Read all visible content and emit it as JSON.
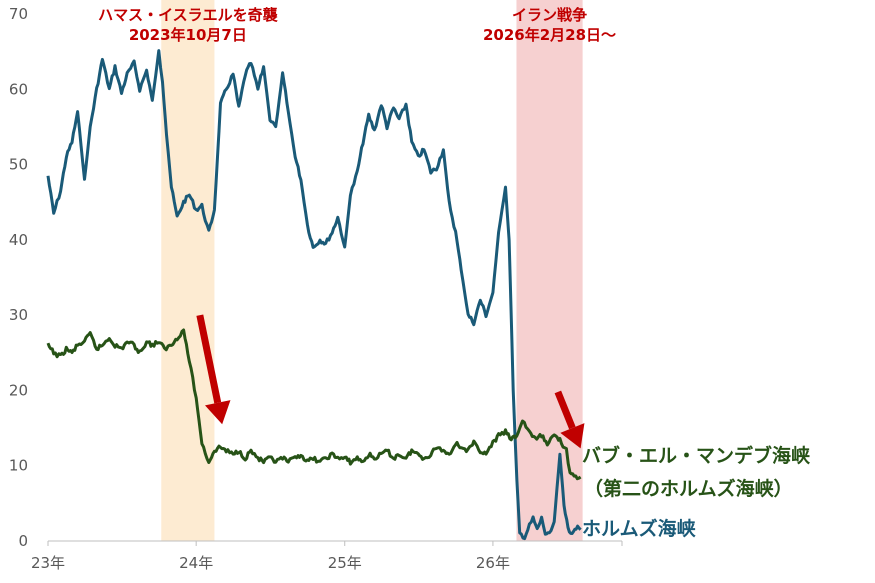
{
  "chart_data": {
    "type": "line",
    "title": "",
    "xlabel": "",
    "ylabel": "",
    "ylim": [
      0,
      70
    ],
    "xlim": [
      "2023-01-01",
      "2026-11-15"
    ],
    "y_ticks": [
      0,
      10,
      20,
      30,
      40,
      50,
      60,
      70
    ],
    "x_ticks": [
      {
        "date": "2023-01-01",
        "label": "23年"
      },
      {
        "date": "2024-01-01",
        "label": "24年"
      },
      {
        "date": "2025-01-01",
        "label": "25年"
      },
      {
        "date": "2026-01-01",
        "label": "26年"
      }
    ],
    "grid": false,
    "legend": "direct labels at right end of lines",
    "events": [
      {
        "start": "2023-10-07",
        "end": "2024-02-15",
        "color": "#fdebd2",
        "label_lines": [
          "ハマス・イスラエルを奇襲",
          "2023年10月7日"
        ]
      },
      {
        "start": "2026-02-28",
        "end": "2026-08-10",
        "color": "#f6d0d0",
        "label_lines": [
          "イラン戦争",
          "2026年2月28日〜"
        ]
      }
    ],
    "arrows": [
      {
        "from": [
          "2024-01-10",
          30
        ],
        "to": [
          "2024-03-05",
          15.5
        ],
        "color": "#c00000"
      },
      {
        "from": [
          "2026-06-10",
          19.8
        ],
        "to": [
          "2026-08-05",
          12.3
        ],
        "color": "#c00000"
      }
    ],
    "series": [
      {
        "label_lines": [
          "ホルムズ海峡"
        ],
        "color": "#1a5a78",
        "points": [
          [
            "2023-01-01",
            48.5
          ],
          [
            "2023-01-15",
            43.5
          ],
          [
            "2023-02-01",
            46.5
          ],
          [
            "2023-02-15",
            51
          ],
          [
            "2023-03-01",
            53
          ],
          [
            "2023-03-15",
            57
          ],
          [
            "2023-04-01",
            48
          ],
          [
            "2023-04-15",
            55
          ],
          [
            "2023-05-01",
            60
          ],
          [
            "2023-05-15",
            64
          ],
          [
            "2023-06-01",
            60
          ],
          [
            "2023-06-15",
            63
          ],
          [
            "2023-07-01",
            59.5
          ],
          [
            "2023-07-15",
            62
          ],
          [
            "2023-08-01",
            63.5
          ],
          [
            "2023-08-15",
            60
          ],
          [
            "2023-09-01",
            62.5
          ],
          [
            "2023-09-15",
            58.5
          ],
          [
            "2023-10-01",
            65
          ],
          [
            "2023-10-10",
            61
          ],
          [
            "2023-10-20",
            54
          ],
          [
            "2023-11-01",
            47
          ],
          [
            "2023-11-15",
            43
          ],
          [
            "2023-12-01",
            45
          ],
          [
            "2023-12-15",
            46
          ],
          [
            "2024-01-01",
            44
          ],
          [
            "2024-01-15",
            44.5
          ],
          [
            "2024-02-01",
            41
          ],
          [
            "2024-02-15",
            44
          ],
          [
            "2024-03-01",
            58
          ],
          [
            "2024-03-15",
            60
          ],
          [
            "2024-04-01",
            62
          ],
          [
            "2024-04-15",
            57.5
          ],
          [
            "2024-05-01",
            62
          ],
          [
            "2024-05-15",
            63.5
          ],
          [
            "2024-06-01",
            60
          ],
          [
            "2024-06-15",
            63
          ],
          [
            "2024-07-01",
            56
          ],
          [
            "2024-07-15",
            55
          ],
          [
            "2024-08-01",
            62
          ],
          [
            "2024-08-15",
            57
          ],
          [
            "2024-09-01",
            51
          ],
          [
            "2024-09-15",
            48
          ],
          [
            "2024-10-01",
            42
          ],
          [
            "2024-10-15",
            39
          ],
          [
            "2024-11-01",
            40
          ],
          [
            "2024-11-15",
            39.5
          ],
          [
            "2024-12-01",
            41
          ],
          [
            "2024-12-15",
            43
          ],
          [
            "2025-01-01",
            39
          ],
          [
            "2025-01-15",
            46
          ],
          [
            "2025-02-01",
            49
          ],
          [
            "2025-02-15",
            53
          ],
          [
            "2025-03-01",
            56.5
          ],
          [
            "2025-03-15",
            54.5
          ],
          [
            "2025-04-01",
            58
          ],
          [
            "2025-04-15",
            55
          ],
          [
            "2025-05-01",
            57.5
          ],
          [
            "2025-05-15",
            56
          ],
          [
            "2025-06-01",
            58
          ],
          [
            "2025-06-15",
            53
          ],
          [
            "2025-07-01",
            51
          ],
          [
            "2025-07-15",
            52
          ],
          [
            "2025-08-01",
            49
          ],
          [
            "2025-08-15",
            49.5
          ],
          [
            "2025-09-01",
            52
          ],
          [
            "2025-09-15",
            45
          ],
          [
            "2025-10-01",
            41
          ],
          [
            "2025-10-15",
            36
          ],
          [
            "2025-11-01",
            30
          ],
          [
            "2025-11-15",
            29
          ],
          [
            "2025-12-01",
            32
          ],
          [
            "2025-12-15",
            30
          ],
          [
            "2026-01-01",
            33
          ],
          [
            "2026-01-15",
            41
          ],
          [
            "2026-02-01",
            47
          ],
          [
            "2026-02-10",
            40
          ],
          [
            "2026-02-20",
            20
          ],
          [
            "2026-03-01",
            8
          ],
          [
            "2026-03-08",
            1
          ],
          [
            "2026-03-20",
            0.5
          ],
          [
            "2026-04-01",
            2
          ],
          [
            "2026-04-10",
            3
          ],
          [
            "2026-04-20",
            1.5
          ],
          [
            "2026-05-01",
            3
          ],
          [
            "2026-05-10",
            1
          ],
          [
            "2026-05-20",
            0.8
          ],
          [
            "2026-06-01",
            2.5
          ],
          [
            "2026-06-15",
            11.5
          ],
          [
            "2026-06-25",
            5
          ],
          [
            "2026-07-05",
            1.5
          ],
          [
            "2026-07-15",
            1.2
          ],
          [
            "2026-07-25",
            1.8
          ],
          [
            "2026-08-05",
            1.5
          ]
        ]
      },
      {
        "label_lines": [
          "バブ・エル・マンデブ海峡",
          "（第二のホルムズ海峡）"
        ],
        "color": "#275317",
        "points": [
          [
            "2023-01-01",
            26
          ],
          [
            "2023-01-15",
            25
          ],
          [
            "2023-02-01",
            24.5
          ],
          [
            "2023-02-15",
            25.5
          ],
          [
            "2023-03-01",
            25
          ],
          [
            "2023-03-15",
            26
          ],
          [
            "2023-04-01",
            26.5
          ],
          [
            "2023-04-15",
            27.5
          ],
          [
            "2023-05-01",
            25.5
          ],
          [
            "2023-05-15",
            26
          ],
          [
            "2023-06-01",
            27
          ],
          [
            "2023-06-15",
            26
          ],
          [
            "2023-07-01",
            25.5
          ],
          [
            "2023-07-15",
            26.5
          ],
          [
            "2023-08-01",
            26
          ],
          [
            "2023-08-15",
            25
          ],
          [
            "2023-09-01",
            26.5
          ],
          [
            "2023-09-15",
            26
          ],
          [
            "2023-10-01",
            26.5
          ],
          [
            "2023-10-15",
            25.5
          ],
          [
            "2023-11-01",
            26
          ],
          [
            "2023-11-15",
            27
          ],
          [
            "2023-12-01",
            28
          ],
          [
            "2023-12-15",
            24
          ],
          [
            "2024-01-01",
            19
          ],
          [
            "2024-01-15",
            13
          ],
          [
            "2024-02-01",
            10.5
          ],
          [
            "2024-02-15",
            12
          ],
          [
            "2024-03-01",
            12.5
          ],
          [
            "2024-03-15",
            12
          ],
          [
            "2024-04-01",
            11.5
          ],
          [
            "2024-04-15",
            12
          ],
          [
            "2024-05-01",
            11
          ],
          [
            "2024-05-15",
            12
          ],
          [
            "2024-06-01",
            11
          ],
          [
            "2024-06-15",
            10.5
          ],
          [
            "2024-07-01",
            11
          ],
          [
            "2024-07-15",
            10.5
          ],
          [
            "2024-08-01",
            11
          ],
          [
            "2024-08-15",
            10.5
          ],
          [
            "2024-09-01",
            11
          ],
          [
            "2024-09-15",
            11.5
          ],
          [
            "2024-10-01",
            10.5
          ],
          [
            "2024-10-15",
            11
          ],
          [
            "2024-11-01",
            10.5
          ],
          [
            "2024-11-15",
            11
          ],
          [
            "2024-12-01",
            11.5
          ],
          [
            "2024-12-15",
            11
          ],
          [
            "2025-01-01",
            11
          ],
          [
            "2025-01-15",
            10.5
          ],
          [
            "2025-02-01",
            11
          ],
          [
            "2025-02-15",
            10.5
          ],
          [
            "2025-03-01",
            11.5
          ],
          [
            "2025-03-15",
            11
          ],
          [
            "2025-04-01",
            11.5
          ],
          [
            "2025-04-15",
            12
          ],
          [
            "2025-05-01",
            11
          ],
          [
            "2025-05-15",
            11.5
          ],
          [
            "2025-06-01",
            11
          ],
          [
            "2025-06-15",
            12
          ],
          [
            "2025-07-01",
            11.5
          ],
          [
            "2025-07-15",
            11
          ],
          [
            "2025-08-01",
            11.5
          ],
          [
            "2025-08-15",
            12.5
          ],
          [
            "2025-09-01",
            12
          ],
          [
            "2025-09-15",
            11.5
          ],
          [
            "2025-10-01",
            13
          ],
          [
            "2025-10-15",
            12.5
          ],
          [
            "2025-11-01",
            12
          ],
          [
            "2025-11-15",
            13
          ],
          [
            "2025-12-01",
            12
          ],
          [
            "2025-12-15",
            11.5
          ],
          [
            "2026-01-01",
            13
          ],
          [
            "2026-01-15",
            14
          ],
          [
            "2026-02-01",
            14.5
          ],
          [
            "2026-02-15",
            13.5
          ],
          [
            "2026-03-01",
            14
          ],
          [
            "2026-03-15",
            16
          ],
          [
            "2026-04-01",
            14.5
          ],
          [
            "2026-04-15",
            13.5
          ],
          [
            "2026-05-01",
            14
          ],
          [
            "2026-05-15",
            13
          ],
          [
            "2026-06-01",
            14
          ],
          [
            "2026-06-15",
            13.5
          ],
          [
            "2026-07-01",
            12
          ],
          [
            "2026-07-10",
            9
          ],
          [
            "2026-07-20",
            8.5
          ],
          [
            "2026-08-05",
            8.5
          ]
        ]
      }
    ]
  }
}
